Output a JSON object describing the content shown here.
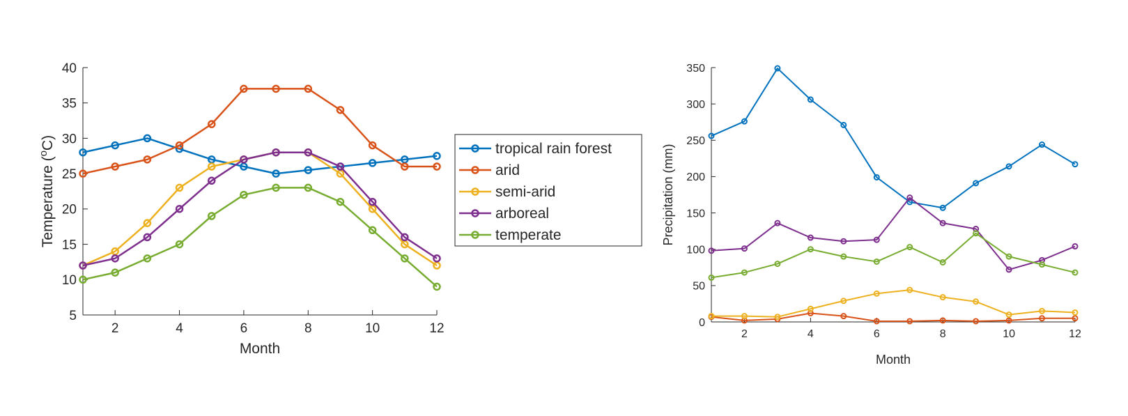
{
  "chart_data": [
    {
      "type": "line",
      "xlabel": "Month",
      "ylabel_main": "Temperature (",
      "ylabel_sup": "o",
      "ylabel_tail": "C)",
      "xlim": [
        1,
        12
      ],
      "ylim": [
        5,
        40
      ],
      "xticks": [
        2,
        4,
        6,
        8,
        10,
        12
      ],
      "yticks": [
        5,
        10,
        15,
        20,
        25,
        30,
        35,
        40
      ],
      "grid": false,
      "legend": "outside-right",
      "x": [
        1,
        2,
        3,
        4,
        5,
        6,
        7,
        8,
        9,
        10,
        11,
        12
      ],
      "series": [
        {
          "name": "tropical rain forest",
          "color": "#0072BD",
          "values": [
            28,
            29,
            30,
            28.5,
            27,
            26,
            25,
            25.5,
            26,
            26.5,
            27,
            27.5
          ]
        },
        {
          "name": "arid",
          "color": "#D95319",
          "values": [
            25,
            26,
            27,
            29,
            32,
            37,
            37,
            37,
            34,
            29,
            26,
            26
          ]
        },
        {
          "name": "semi-arid",
          "color": "#EDB120",
          "values": [
            12,
            14,
            18,
            23,
            26,
            27,
            28,
            28,
            25,
            20,
            15,
            12
          ]
        },
        {
          "name": "arboreal",
          "color": "#7E2F8E",
          "values": [
            12,
            13,
            16,
            20,
            24,
            27,
            28,
            28,
            26,
            21,
            16,
            13
          ]
        },
        {
          "name": "temperate",
          "color": "#77AC30",
          "values": [
            10,
            11,
            13,
            15,
            19,
            22,
            23,
            23,
            21,
            17,
            13,
            9
          ]
        }
      ]
    },
    {
      "type": "line",
      "xlabel": "Month",
      "ylabel": "Precipitation (mm)",
      "xlim": [
        1,
        12
      ],
      "ylim": [
        0,
        350
      ],
      "xticks": [
        2,
        4,
        6,
        8,
        10,
        12
      ],
      "yticks": [
        0,
        50,
        100,
        150,
        200,
        250,
        300,
        350
      ],
      "grid": false,
      "x": [
        1,
        2,
        3,
        4,
        5,
        6,
        7,
        8,
        9,
        10,
        11,
        12
      ],
      "series": [
        {
          "color": "#0072BD",
          "values": [
            256,
            276,
            349,
            306,
            271,
            199,
            165,
            157,
            191,
            214,
            244,
            217
          ]
        },
        {
          "color": "#D95319",
          "values": [
            7,
            2,
            4,
            12,
            8,
            1,
            1,
            2,
            1,
            2,
            5,
            5
          ]
        },
        {
          "color": "#EDB120",
          "values": [
            8,
            8,
            7,
            18,
            29,
            39,
            44,
            34,
            28,
            10,
            15,
            13
          ]
        },
        {
          "color": "#7E2F8E",
          "values": [
            98,
            101,
            136,
            116,
            111,
            113,
            171,
            136,
            128,
            72,
            85,
            104
          ]
        },
        {
          "color": "#77AC30",
          "values": [
            61,
            68,
            80,
            100,
            90,
            83,
            103,
            82,
            122,
            90,
            79,
            68
          ]
        }
      ]
    }
  ]
}
